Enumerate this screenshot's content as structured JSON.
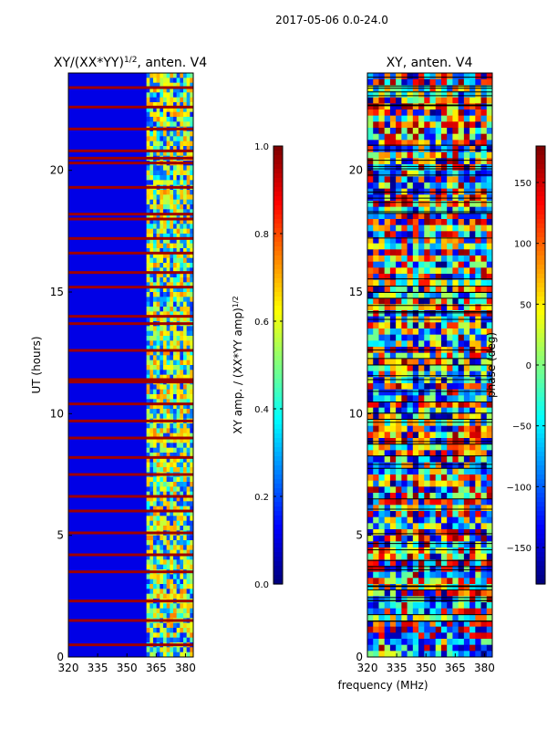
{
  "figure": {
    "suptitle": "2017-05-06 0.0-24.0",
    "xlabel_shared": "frequency (MHz)"
  },
  "chart_data": [
    {
      "type": "heatmap",
      "title": "XY/(XX*YY)^1/2, anten. V4",
      "title_main": "XY/(XX*YY)",
      "title_exp": "1/2",
      "title_suffix": ", anten. V4",
      "xlabel": "",
      "ylabel": "UT (hours)",
      "xlim": [
        320,
        384
      ],
      "ylim": [
        0,
        24
      ],
      "xticks": [
        320,
        335,
        350,
        365,
        380
      ],
      "yticks": [
        0,
        5,
        10,
        15,
        20
      ],
      "colorbar": {
        "label": "XY amp. / (XX*YY amp)^1/2",
        "label_main": "XY amp. / (XX*YY amp)",
        "label_exp": "1/2",
        "range": [
          0.0,
          1.0
        ],
        "ticks": [
          0.0,
          0.2,
          0.4,
          0.6,
          0.8,
          1.0
        ],
        "tick_labels": [
          "0.0",
          "0.2",
          "0.4",
          "0.6",
          "0.8",
          "1.0"
        ],
        "colormap": "jet"
      },
      "background_value": 0.1,
      "active_band_mhz": [
        360,
        384
      ],
      "saturated_rows_ut": [
        0.5,
        1.5,
        2.3,
        3.5,
        4.2,
        5.1,
        6.0,
        6.6,
        7.5,
        8.2,
        9.0,
        9.7,
        10.4,
        11.3,
        11.4,
        12.6,
        13.7,
        14.0,
        15.2,
        15.8,
        16.6,
        17.2,
        18.0,
        18.2,
        19.3,
        20.3,
        20.5,
        20.8,
        21.7,
        22.6,
        23.4
      ]
    },
    {
      "type": "heatmap",
      "title": "XY, anten. V4",
      "xlabel": "frequency (MHz)",
      "ylabel": "",
      "xlim": [
        320,
        384
      ],
      "ylim": [
        0,
        24
      ],
      "xticks": [
        320,
        335,
        350,
        365,
        380
      ],
      "yticks": [
        0,
        5,
        10,
        15,
        20
      ],
      "colorbar": {
        "label": "phase (deg)",
        "range": [
          -180,
          180
        ],
        "ticks": [
          150,
          100,
          50,
          0,
          -50,
          -100,
          -150
        ],
        "tick_labels": [
          "150",
          "100",
          "50",
          "0",
          "−50",
          "−100",
          "−150"
        ],
        "colormap": "jet"
      }
    }
  ]
}
